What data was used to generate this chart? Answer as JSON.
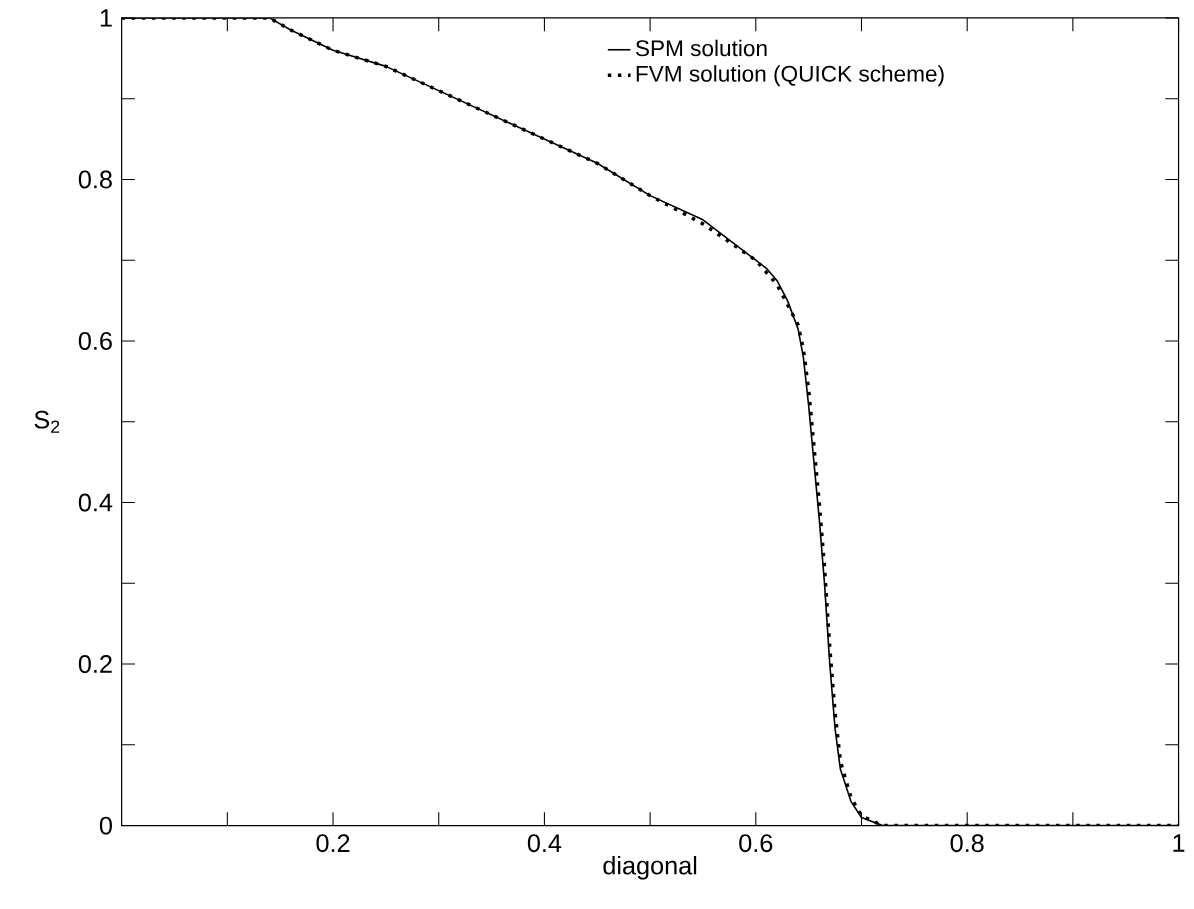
{
  "chart_data": {
    "type": "line",
    "xlabel": "diagonal",
    "ylabel": "S$_{2}$",
    "xlim": [
      0,
      1
    ],
    "ylim": [
      0,
      1
    ],
    "xticks": [
      {
        "value": 0.1,
        "label": null
      },
      0.2,
      {
        "value": 0.3,
        "label": null
      },
      0.4,
      {
        "value": 0.5,
        "label": null
      },
      0.6,
      {
        "value": 0.7,
        "label": null
      },
      0.8,
      {
        "value": 0.9,
        "label": null
      },
      1
    ],
    "yticks": [
      0,
      {
        "value": 0.1,
        "label": null
      },
      0.2,
      {
        "value": 0.3,
        "label": null
      },
      0.4,
      {
        "value": 0.5,
        "label": null
      },
      0.6,
      {
        "value": 0.7,
        "label": null
      },
      0.8,
      {
        "value": 0.9,
        "label": null
      },
      1
    ],
    "legend": "top",
    "grid": false,
    "marker": "none",
    "series": [
      {
        "name": "SPM solution",
        "color": "#000000",
        "line_style": "solid",
        "x": [
          0,
          0.14,
          0.16,
          0.2,
          0.25,
          0.3,
          0.35,
          0.4,
          0.45,
          0.5,
          0.55,
          0.6,
          0.61,
          0.62,
          0.63,
          0.64,
          0.645,
          0.65,
          0.655,
          0.66,
          0.665,
          0.67,
          0.675,
          0.68,
          0.69,
          0.7,
          0.72,
          1
        ],
        "values": [
          1,
          1,
          0.985,
          0.96,
          0.94,
          0.91,
          0.88,
          0.85,
          0.82,
          0.78,
          0.75,
          0.7,
          0.69,
          0.675,
          0.65,
          0.615,
          0.58,
          0.52,
          0.45,
          0.38,
          0.3,
          0.2,
          0.12,
          0.07,
          0.03,
          0.01,
          0,
          0
        ]
      },
      {
        "name": "FVM solution (QUICK scheme)",
        "color": "#000000",
        "line_style": "dotted",
        "x": [
          0,
          0.14,
          0.16,
          0.2,
          0.25,
          0.3,
          0.35,
          0.4,
          0.45,
          0.5,
          0.55,
          0.6,
          0.61,
          0.62,
          0.63,
          0.64,
          0.645,
          0.65,
          0.655,
          0.66,
          0.665,
          0.67,
          0.675,
          0.68,
          0.69,
          0.7,
          0.72,
          1
        ],
        "values": [
          1,
          1,
          0.985,
          0.96,
          0.94,
          0.91,
          0.88,
          0.85,
          0.82,
          0.78,
          0.745,
          0.7,
          0.685,
          0.67,
          0.645,
          0.62,
          0.59,
          0.54,
          0.47,
          0.4,
          0.32,
          0.22,
          0.14,
          0.08,
          0.035,
          0.012,
          0,
          0
        ]
      }
    ]
  }
}
